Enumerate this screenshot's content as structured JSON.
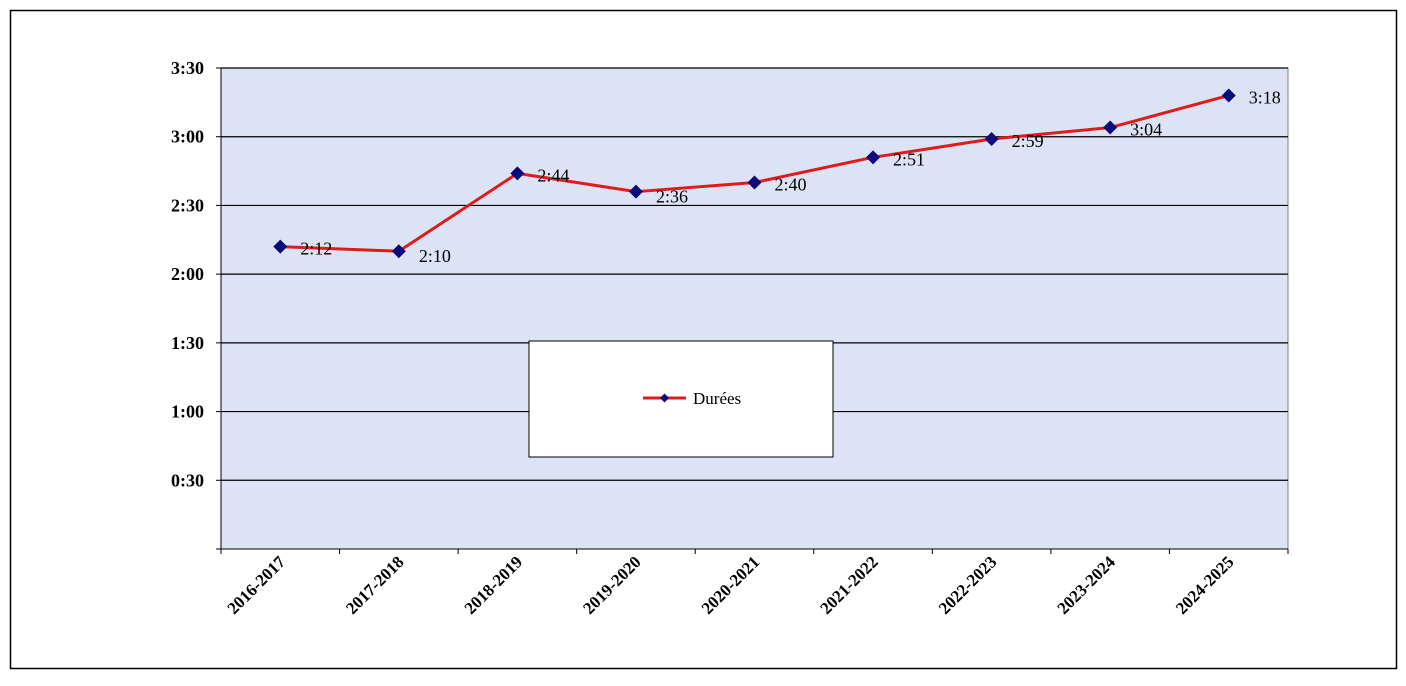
{
  "chart_data": {
    "type": "line",
    "categories": [
      "2016-2017",
      "2017-2018",
      "2018-2019",
      "2019-2020",
      "2020-2021",
      "2021-2022",
      "2022-2023",
      "2023-2024",
      "2024-2025"
    ],
    "series": [
      {
        "name": "Durées",
        "values_minutes": [
          132,
          130,
          164,
          156,
          160,
          171,
          179,
          184,
          198
        ],
        "labels": [
          "2:12",
          "2:10",
          "2:44",
          "2:36",
          "2:40",
          "2:51",
          "2:59",
          "3:04",
          "3:18"
        ]
      }
    ],
    "y_ticks": [
      "0:30",
      "1:00",
      "1:30",
      "2:00",
      "2:30",
      "3:00",
      "3:30"
    ],
    "y_tick_values_minutes": [
      30,
      60,
      90,
      120,
      150,
      180,
      210
    ],
    "ylim_minutes": [
      0,
      210
    ],
    "grid": true,
    "legend_position": "center",
    "colors": {
      "line": "#e01b1b",
      "marker": "#0a0a7a",
      "plot_background": "#dbe3f4",
      "gridline": "#000000"
    },
    "marker": "diamond-icon"
  }
}
